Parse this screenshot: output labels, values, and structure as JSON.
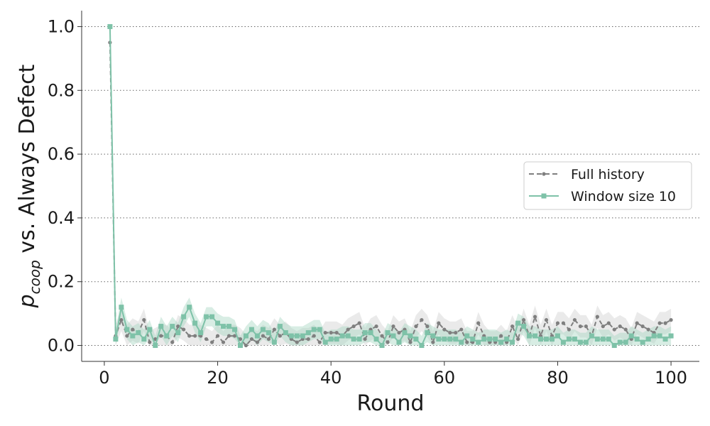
{
  "chart_data": {
    "type": "line",
    "xlabel": "Round",
    "ylabel": {
      "base": "p",
      "subscript": "coop",
      "rest": " vs. Always Defect"
    },
    "xlim": [
      -4,
      105
    ],
    "ylim": [
      -0.05,
      1.05
    ],
    "xticks": [
      0,
      20,
      40,
      60,
      80,
      100
    ],
    "xtick_labels": [
      "0",
      "20",
      "40",
      "60",
      "80",
      "100"
    ],
    "yticks": [
      0.0,
      0.2,
      0.4,
      0.6,
      0.8,
      1.0
    ],
    "ytick_labels": [
      "0.0",
      "0.2",
      "0.4",
      "0.6",
      "0.8",
      "1.0"
    ],
    "grid": "horizontal dotted",
    "legend_position": "center-right",
    "x": [
      1,
      2,
      3,
      4,
      5,
      6,
      7,
      8,
      9,
      10,
      11,
      12,
      13,
      14,
      15,
      16,
      17,
      18,
      19,
      20,
      21,
      22,
      23,
      24,
      25,
      26,
      27,
      28,
      29,
      30,
      31,
      32,
      33,
      34,
      35,
      36,
      37,
      38,
      39,
      40,
      41,
      42,
      43,
      44,
      45,
      46,
      47,
      48,
      49,
      50,
      51,
      52,
      53,
      54,
      55,
      56,
      57,
      58,
      59,
      60,
      61,
      62,
      63,
      64,
      65,
      66,
      67,
      68,
      69,
      70,
      71,
      72,
      73,
      74,
      75,
      76,
      77,
      78,
      79,
      80,
      81,
      82,
      83,
      84,
      85,
      86,
      87,
      88,
      89,
      90,
      91,
      92,
      93,
      94,
      95,
      96,
      97,
      98,
      99,
      100
    ],
    "series": [
      {
        "name": "Full history",
        "color": "#7f7f7f",
        "style": "dashed",
        "marker": "circle",
        "band_color": "#d9d9d9",
        "values": [
          0.95,
          0.03,
          0.08,
          0.03,
          0.05,
          0.04,
          0.08,
          0.01,
          0.02,
          0.03,
          0.03,
          0.01,
          0.06,
          0.05,
          0.03,
          0.03,
          0.03,
          0.02,
          0.01,
          0.03,
          0.01,
          0.03,
          0.03,
          0.02,
          0.0,
          0.02,
          0.01,
          0.03,
          0.02,
          0.05,
          0.03,
          0.04,
          0.02,
          0.01,
          0.02,
          0.02,
          0.03,
          0.01,
          0.04,
          0.04,
          0.04,
          0.03,
          0.05,
          0.06,
          0.07,
          0.02,
          0.05,
          0.06,
          0.03,
          0.01,
          0.06,
          0.04,
          0.05,
          0.01,
          0.06,
          0.08,
          0.06,
          0.01,
          0.07,
          0.05,
          0.04,
          0.04,
          0.05,
          0.01,
          0.01,
          0.07,
          0.03,
          0.01,
          0.01,
          0.03,
          0.01,
          0.06,
          0.02,
          0.08,
          0.03,
          0.09,
          0.03,
          0.08,
          0.03,
          0.07,
          0.07,
          0.05,
          0.08,
          0.06,
          0.06,
          0.03,
          0.09,
          0.06,
          0.07,
          0.05,
          0.06,
          0.05,
          0.02,
          0.07,
          0.06,
          0.05,
          0.04,
          0.07,
          0.07,
          0.08
        ],
        "ci_half_width": 0.035
      },
      {
        "name": "Window size 10",
        "color": "#7ec2a8",
        "style": "solid",
        "marker": "square",
        "band_color": "#a8d8c4",
        "values": [
          1.0,
          0.02,
          0.12,
          0.05,
          0.03,
          0.04,
          0.02,
          0.05,
          0.0,
          0.06,
          0.03,
          0.06,
          0.04,
          0.09,
          0.12,
          0.07,
          0.04,
          0.09,
          0.09,
          0.07,
          0.06,
          0.06,
          0.05,
          0.0,
          0.03,
          0.05,
          0.03,
          0.05,
          0.04,
          0.01,
          0.06,
          0.04,
          0.03,
          0.03,
          0.03,
          0.04,
          0.05,
          0.05,
          0.01,
          0.02,
          0.02,
          0.03,
          0.03,
          0.02,
          0.02,
          0.04,
          0.04,
          0.02,
          0.0,
          0.04,
          0.03,
          0.01,
          0.04,
          0.03,
          0.02,
          0.0,
          0.04,
          0.03,
          0.02,
          0.02,
          0.02,
          0.02,
          0.01,
          0.03,
          0.02,
          0.01,
          0.02,
          0.02,
          0.02,
          0.01,
          0.02,
          0.01,
          0.07,
          0.06,
          0.03,
          0.03,
          0.02,
          0.02,
          0.02,
          0.03,
          0.01,
          0.02,
          0.02,
          0.01,
          0.01,
          0.03,
          0.02,
          0.02,
          0.02,
          0.0,
          0.01,
          0.01,
          0.03,
          0.02,
          0.01,
          0.02,
          0.03,
          0.03,
          0.02,
          0.03
        ],
        "ci_half_width": 0.03
      }
    ]
  }
}
